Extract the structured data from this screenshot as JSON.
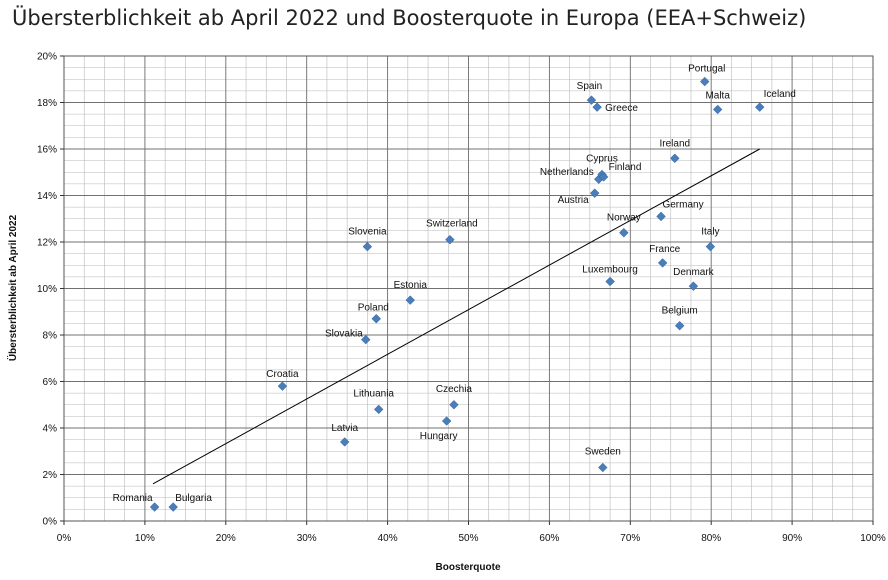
{
  "chart_data": {
    "type": "scatter",
    "title": "Übersterblichkeit ab April 2022  und Boosterquote in Europa (EEA+Schweiz)",
    "xlabel": "Boosterquote",
    "ylabel": "Übersterblichkeit ab April 2022",
    "xlim": [
      0,
      1
    ],
    "ylim": [
      0,
      0.2
    ],
    "x_ticks": [
      "0%",
      "10%",
      "20%",
      "30%",
      "40%",
      "50%",
      "60%",
      "70%",
      "80%",
      "90%",
      "100%"
    ],
    "y_ticks": [
      "0%",
      "2%",
      "4%",
      "6%",
      "8%",
      "10%",
      "12%",
      "14%",
      "16%",
      "18%",
      "20%"
    ],
    "grid": true,
    "marker_color": "#4a7ebb",
    "trendline_color": "#000000",
    "trendline": {
      "x": [
        0.11,
        0.86
      ],
      "y": [
        0.016,
        0.16
      ]
    },
    "points": [
      {
        "label": "Romania",
        "x": 0.112,
        "y": 0.006
      },
      {
        "label": "Bulgaria",
        "x": 0.135,
        "y": 0.006
      },
      {
        "label": "Croatia",
        "x": 0.27,
        "y": 0.058
      },
      {
        "label": "Latvia",
        "x": 0.347,
        "y": 0.034
      },
      {
        "label": "Slovakia",
        "x": 0.373,
        "y": 0.078
      },
      {
        "label": "Slovenia",
        "x": 0.375,
        "y": 0.118
      },
      {
        "label": "Poland",
        "x": 0.386,
        "y": 0.087
      },
      {
        "label": "Lithuania",
        "x": 0.389,
        "y": 0.048
      },
      {
        "label": "Estonia",
        "x": 0.428,
        "y": 0.095
      },
      {
        "label": "Hungary",
        "x": 0.473,
        "y": 0.043
      },
      {
        "label": "Switzerland",
        "x": 0.477,
        "y": 0.121
      },
      {
        "label": "Czechia",
        "x": 0.482,
        "y": 0.05
      },
      {
        "label": "Spain",
        "x": 0.652,
        "y": 0.181
      },
      {
        "label": "Austria",
        "x": 0.656,
        "y": 0.141
      },
      {
        "label": "Greece",
        "x": 0.659,
        "y": 0.178
      },
      {
        "label": "Netherlands",
        "x": 0.661,
        "y": 0.147
      },
      {
        "label": "Cyprus",
        "x": 0.665,
        "y": 0.149
      },
      {
        "label": "Finland",
        "x": 0.667,
        "y": 0.148
      },
      {
        "label": "Sweden",
        "x": 0.666,
        "y": 0.023
      },
      {
        "label": "Luxembourg",
        "x": 0.675,
        "y": 0.103
      },
      {
        "label": "Norway",
        "x": 0.692,
        "y": 0.124
      },
      {
        "label": "Germany",
        "x": 0.738,
        "y": 0.131
      },
      {
        "label": "France",
        "x": 0.74,
        "y": 0.111
      },
      {
        "label": "Ireland",
        "x": 0.755,
        "y": 0.156
      },
      {
        "label": "Belgium",
        "x": 0.761,
        "y": 0.084
      },
      {
        "label": "Denmark",
        "x": 0.778,
        "y": 0.101
      },
      {
        "label": "Portugal",
        "x": 0.792,
        "y": 0.189
      },
      {
        "label": "Italy",
        "x": 0.799,
        "y": 0.118
      },
      {
        "label": "Malta",
        "x": 0.808,
        "y": 0.177
      },
      {
        "label": "Iceland",
        "x": 0.86,
        "y": 0.178
      }
    ]
  }
}
